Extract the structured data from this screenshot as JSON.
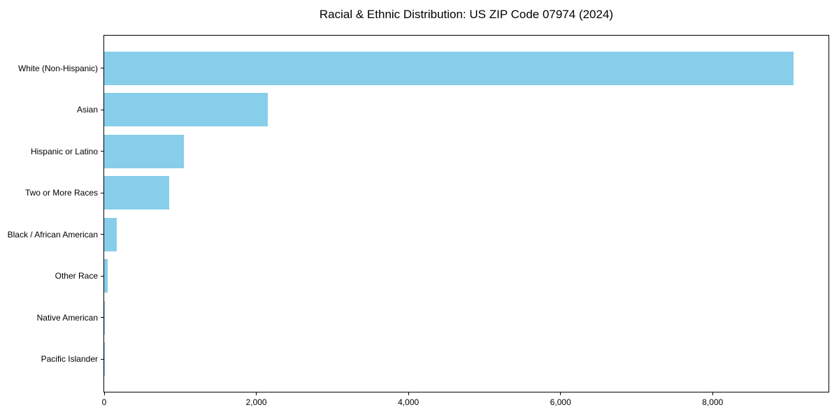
{
  "chart_data": {
    "type": "bar",
    "orientation": "horizontal",
    "title": "Racial & Ethnic Distribution: US ZIP Code 07974 (2024)",
    "categories": [
      "White (Non-Hispanic)",
      "Asian",
      "Hispanic or Latino",
      "Two or More Races",
      "Black / African American",
      "Other Race",
      "Native American",
      "Pacific Islander"
    ],
    "values": [
      9060,
      2150,
      1050,
      855,
      165,
      45,
      10,
      2
    ],
    "xlabel": "",
    "ylabel": "",
    "xlim": [
      0,
      9523
    ],
    "x_ticks": [
      0,
      2000,
      4000,
      6000,
      8000
    ],
    "x_tick_labels": [
      "0",
      "2,000",
      "4,000",
      "6,000",
      "8,000"
    ],
    "bar_color": "#87CEEB",
    "grid": false,
    "legend": null
  }
}
